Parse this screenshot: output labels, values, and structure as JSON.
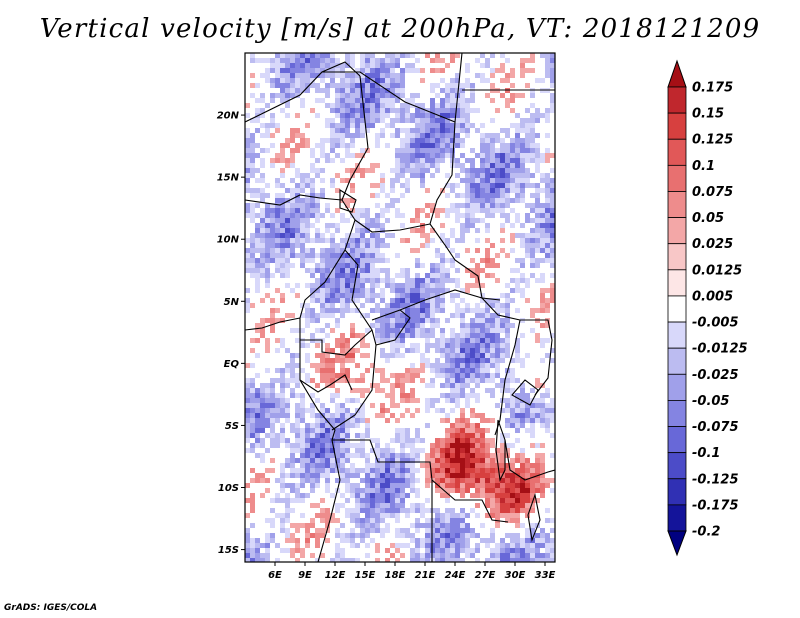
{
  "title": "Vertical velocity [m/s] at 200hPa, VT: 2018121209",
  "credit": "GrADS: IGES/COLA",
  "map": {
    "lon_range": [
      3,
      34
    ],
    "lat_range": [
      -16,
      25
    ],
    "lon_ticks": [
      {
        "value": 6,
        "label": "6E"
      },
      {
        "value": 9,
        "label": "9E"
      },
      {
        "value": 12,
        "label": "12E"
      },
      {
        "value": 15,
        "label": "15E"
      },
      {
        "value": 18,
        "label": "18E"
      },
      {
        "value": 21,
        "label": "21E"
      },
      {
        "value": 24,
        "label": "24E"
      },
      {
        "value": 27,
        "label": "27E"
      },
      {
        "value": 30,
        "label": "30E"
      },
      {
        "value": 33,
        "label": "33E"
      }
    ],
    "lat_ticks": [
      {
        "value": 20,
        "label": "20N"
      },
      {
        "value": 15,
        "label": "15N"
      },
      {
        "value": 10,
        "label": "10N"
      },
      {
        "value": 5,
        "label": "5N"
      },
      {
        "value": 0,
        "label": "EQ"
      },
      {
        "value": -5,
        "label": "5S"
      },
      {
        "value": -10,
        "label": "10S"
      },
      {
        "value": -15,
        "label": "15S"
      }
    ],
    "field_description": "Shaded vertical velocity field; strongest positive (red) cells near 24E-27E, 7S-11S and around 32E, 1N; predominantly weak negative (blue) elsewhere"
  },
  "colorbar": {
    "labels": [
      "0.175",
      "0.15",
      "0.125",
      "0.1",
      "0.075",
      "0.05",
      "0.025",
      "0.0125",
      "0.005",
      "-0.005",
      "-0.0125",
      "-0.025",
      "-0.05",
      "-0.075",
      "-0.1",
      "-0.125",
      "-0.175",
      "-0.2"
    ],
    "colors": [
      "#a50f15",
      "#c0272d",
      "#d7403f",
      "#e15858",
      "#e87070",
      "#ee8c8c",
      "#f3a7a7",
      "#f8c7c7",
      "#fde6e6",
      "#ffffff",
      "#d8d8fa",
      "#bcbcf1",
      "#a0a0ea",
      "#8484e2",
      "#6868d8",
      "#4c4cc8",
      "#3030b4",
      "#14149a",
      "#000080"
    ]
  }
}
